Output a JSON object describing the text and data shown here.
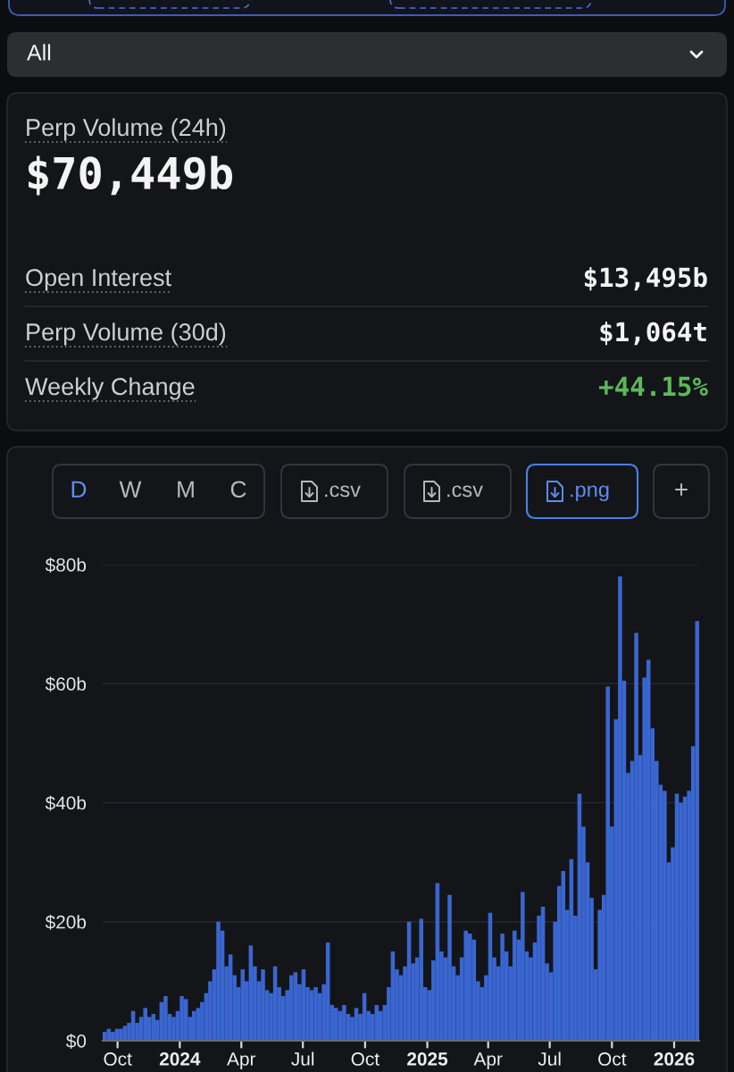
{
  "chart_data": [
    {
      "type": "other",
      "annotations": [
        "All"
      ]
    },
    {
      "type": "other",
      "title": "Perp Volume (24h)",
      "subtitle": "$70,449b",
      "annotations": [
        "Open Interest",
        "$13,495b",
        "Perp Volume (30d)",
        "$1,064t",
        "Weekly Change",
        "+44.15%"
      ]
    },
    {
      "type": "bar",
      "annotations": [
        "D",
        "W",
        "M",
        "C",
        ".csv",
        ".csv",
        ".png",
        "+"
      ],
      "x": [
        "2023-09-12",
        "2023-09-18",
        "2023-09-24",
        "2023-09-30",
        "2023-10-06",
        "2023-10-12",
        "2023-10-18",
        "2023-10-24",
        "2023-10-30",
        "2023-11-05",
        "2023-11-11",
        "2023-11-17",
        "2023-11-23",
        "2023-11-29",
        "2023-12-05",
        "2023-12-11",
        "2023-12-17",
        "2023-12-23",
        "2023-12-29",
        "2024-01-04",
        "2024-01-10",
        "2024-01-16",
        "2024-01-22",
        "2024-01-28",
        "2024-02-03",
        "2024-02-09",
        "2024-02-15",
        "2024-02-21",
        "2024-02-27",
        "2024-03-04",
        "2024-03-10",
        "2024-03-16",
        "2024-03-22",
        "2024-03-28",
        "2024-04-03",
        "2024-04-09",
        "2024-04-15",
        "2024-04-21",
        "2024-04-27",
        "2024-05-03",
        "2024-05-09",
        "2024-05-15",
        "2024-05-21",
        "2024-05-27",
        "2024-06-02",
        "2024-06-08",
        "2024-06-14",
        "2024-06-20",
        "2024-06-26",
        "2024-07-02",
        "2024-07-08",
        "2024-07-14",
        "2024-07-20",
        "2024-07-26",
        "2024-08-01",
        "2024-08-07",
        "2024-08-13",
        "2024-08-19",
        "2024-08-25",
        "2024-08-31",
        "2024-09-06",
        "2024-09-12",
        "2024-09-18",
        "2024-09-24",
        "2024-09-30",
        "2024-10-06",
        "2024-10-12",
        "2024-10-18",
        "2024-10-24",
        "2024-10-30",
        "2024-11-05",
        "2024-11-11",
        "2024-11-17",
        "2024-11-23",
        "2024-11-29",
        "2024-12-05",
        "2024-12-11",
        "2024-12-17",
        "2024-12-23",
        "2024-12-29",
        "2025-01-04",
        "2025-01-10",
        "2025-01-16",
        "2025-01-22",
        "2025-01-28",
        "2025-02-03",
        "2025-02-09",
        "2025-02-15",
        "2025-02-21",
        "2025-02-27",
        "2025-03-05",
        "2025-03-11",
        "2025-03-17",
        "2025-03-23",
        "2025-03-29",
        "2025-04-04",
        "2025-04-10",
        "2025-04-16",
        "2025-04-22",
        "2025-04-28",
        "2025-05-04",
        "2025-05-10",
        "2025-05-16",
        "2025-05-22",
        "2025-05-28",
        "2025-06-03",
        "2025-06-09",
        "2025-06-15",
        "2025-06-21",
        "2025-06-27",
        "2025-07-03",
        "2025-07-09",
        "2025-07-15",
        "2025-07-21",
        "2025-07-27",
        "2025-08-02",
        "2025-08-08",
        "2025-08-14",
        "2025-08-20",
        "2025-08-26",
        "2025-09-01",
        "2025-09-07",
        "2025-09-13",
        "2025-09-19",
        "2025-09-25",
        "2025-10-01",
        "2025-10-07",
        "2025-10-13",
        "2025-10-19",
        "2025-10-25",
        "2025-10-31",
        "2025-11-06",
        "2025-11-12",
        "2025-11-18",
        "2025-11-24",
        "2025-11-30",
        "2025-12-06",
        "2025-12-12",
        "2025-12-18",
        "2025-12-24",
        "2025-12-30",
        "2026-01-05",
        "2026-01-11",
        "2026-01-17",
        "2026-01-23",
        "2026-01-29",
        "2026-02-04"
      ],
      "values": [
        1.5,
        2,
        1.5,
        2,
        2,
        2.5,
        3,
        5,
        3,
        4,
        5.5,
        4,
        4.5,
        3.5,
        6.5,
        7.5,
        4.5,
        4,
        5,
        7.5,
        7,
        4,
        5,
        5.5,
        6.5,
        8,
        10,
        12,
        20,
        18.5,
        12.5,
        14.5,
        11,
        9,
        12,
        10,
        16,
        12.5,
        10,
        12,
        8.5,
        8,
        12.5,
        9,
        7.5,
        8.5,
        11,
        11.5,
        9.5,
        12,
        9,
        8.5,
        9,
        8,
        9.5,
        16.5,
        6,
        5.5,
        5,
        6,
        4.5,
        4,
        5.5,
        4.5,
        8,
        5,
        4.5,
        6,
        5,
        6,
        9,
        15,
        12,
        11,
        12.5,
        20,
        13,
        14,
        20.5,
        9,
        8.5,
        13.5,
        26.5,
        15,
        14,
        24.5,
        12.5,
        11,
        14,
        18.5,
        18,
        17,
        10,
        9,
        11,
        21.5,
        14,
        12.5,
        18,
        15,
        12.5,
        18.5,
        17,
        25,
        15,
        14,
        16.5,
        21,
        22.5,
        13,
        11.5,
        20,
        26,
        28.5,
        22,
        30.5,
        21,
        41.5,
        36,
        30,
        24,
        12,
        22,
        24.5,
        59.5,
        36,
        54,
        78,
        60.5,
        45,
        47,
        68.5,
        48,
        61,
        64,
        52.5,
        47,
        43,
        42,
        30,
        32.5,
        41.5,
        40,
        41,
        42,
        49.5,
        70.5
      ],
      "color": "#3a66d1",
      "xlim": [
        "2023-09-09",
        "2026-02-07"
      ],
      "xticks": [
        {
          "value": "2023-10-01",
          "label": "Oct"
        },
        {
          "value": "2024-01-01",
          "label": "2024"
        },
        {
          "value": "2024-04-01",
          "label": "Apr"
        },
        {
          "value": "2024-07-01",
          "label": "Jul"
        },
        {
          "value": "2024-10-01",
          "label": "Oct"
        },
        {
          "value": "2025-01-01",
          "label": "2025"
        },
        {
          "value": "2025-04-01",
          "label": "Apr"
        },
        {
          "value": "2025-07-01",
          "label": "Jul"
        },
        {
          "value": "2025-10-01",
          "label": "Oct"
        },
        {
          "value": "2026-01-01",
          "label": "2026"
        }
      ],
      "ylim": [
        0,
        80
      ],
      "yticks": [
        {
          "value": 0,
          "label": "$0"
        },
        {
          "value": 20,
          "label": "$20b"
        },
        {
          "value": 40,
          "label": "$40b"
        },
        {
          "value": 60,
          "label": "$60b"
        },
        {
          "value": 80,
          "label": "$80b"
        }
      ],
      "grid": "y"
    }
  ]
}
